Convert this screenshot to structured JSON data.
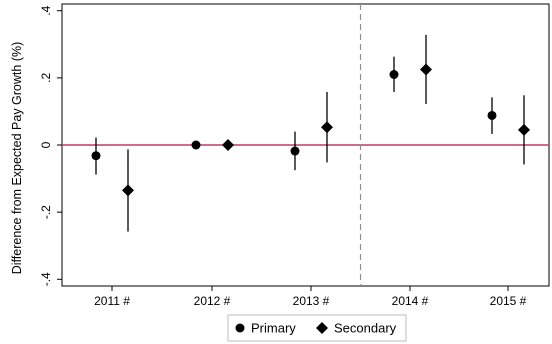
{
  "chart_data": {
    "type": "scatter",
    "title": "",
    "xlabel": "",
    "ylabel": "Difference from Expected Pay Growth (%)",
    "categories": [
      "2011 #",
      "2012 #",
      "2013 #",
      "2014 #",
      "2015 #"
    ],
    "ylim": [
      -0.42,
      0.42
    ],
    "yticks": [
      -0.4,
      -0.2,
      0,
      0.2,
      0.4
    ],
    "ytick_labels": [
      "-.4",
      "-.2",
      "0",
      ".2",
      ".4"
    ],
    "reference_line": {
      "y": 0,
      "color": "#c0396b"
    },
    "vertical_divider": {
      "between": [
        "2013 #",
        "2014 #"
      ],
      "style": "dashed",
      "color": "#8f8f8f"
    },
    "grid": false,
    "series": [
      {
        "name": "Primary",
        "marker": "circle",
        "values": [
          -0.032,
          0.0,
          -0.018,
          0.21,
          0.088
        ],
        "ci_low": [
          -0.088,
          -0.003,
          -0.075,
          0.158,
          0.033
        ],
        "ci_high": [
          0.022,
          0.003,
          0.04,
          0.263,
          0.142
        ]
      },
      {
        "name": "Secondary",
        "marker": "diamond",
        "values": [
          -0.135,
          0.0,
          0.053,
          0.225,
          0.045
        ],
        "ci_low": [
          -0.258,
          -0.003,
          -0.052,
          0.122,
          -0.058
        ],
        "ci_high": [
          -0.013,
          0.003,
          0.158,
          0.328,
          0.148
        ]
      }
    ],
    "legend": {
      "position": "bottom-center",
      "items": [
        "Primary",
        "Secondary"
      ]
    }
  }
}
